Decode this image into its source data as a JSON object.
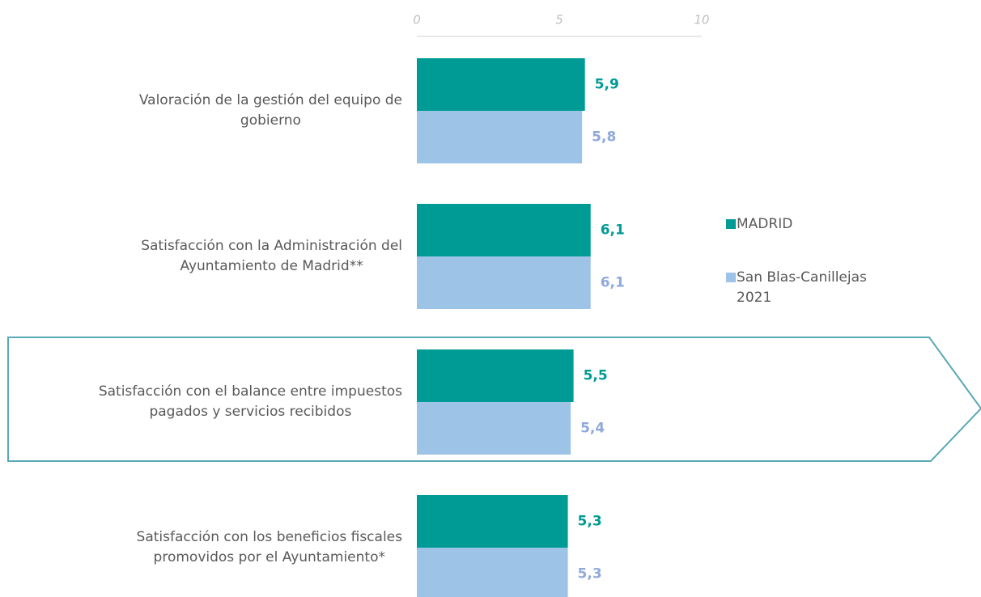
{
  "chart_data": {
    "type": "barh",
    "categories": [
      "Valoración de la gestión del equipo de\ngobierno",
      "Satisfacción con la Administración del\nAyuntamiento de Madrid**",
      "Satisfacción con el balance entre impuestos\npagados y servicios recibidos",
      "Satisfacción con los beneficios fiscales\npromovidos por el Ayuntamiento*"
    ],
    "series": [
      {
        "name": "MADRID",
        "color": "#009b95",
        "label_color": "#009b95",
        "values": [
          5.9,
          6.1,
          5.5,
          5.3
        ],
        "value_labels": [
          "5,9",
          "6,1",
          "5,5",
          "5,3"
        ]
      },
      {
        "name": "San Blas-Canillejas\n2021",
        "color": "#9dc3e6",
        "label_color": "#8fa9dc",
        "values": [
          5.8,
          6.1,
          5.4,
          5.3
        ],
        "value_labels": [
          "5,8",
          "6,1",
          "5,4",
          "5,3"
        ]
      }
    ],
    "xlim": [
      0,
      10
    ],
    "xticks": [
      0,
      5,
      10
    ],
    "legend": "right"
  }
}
